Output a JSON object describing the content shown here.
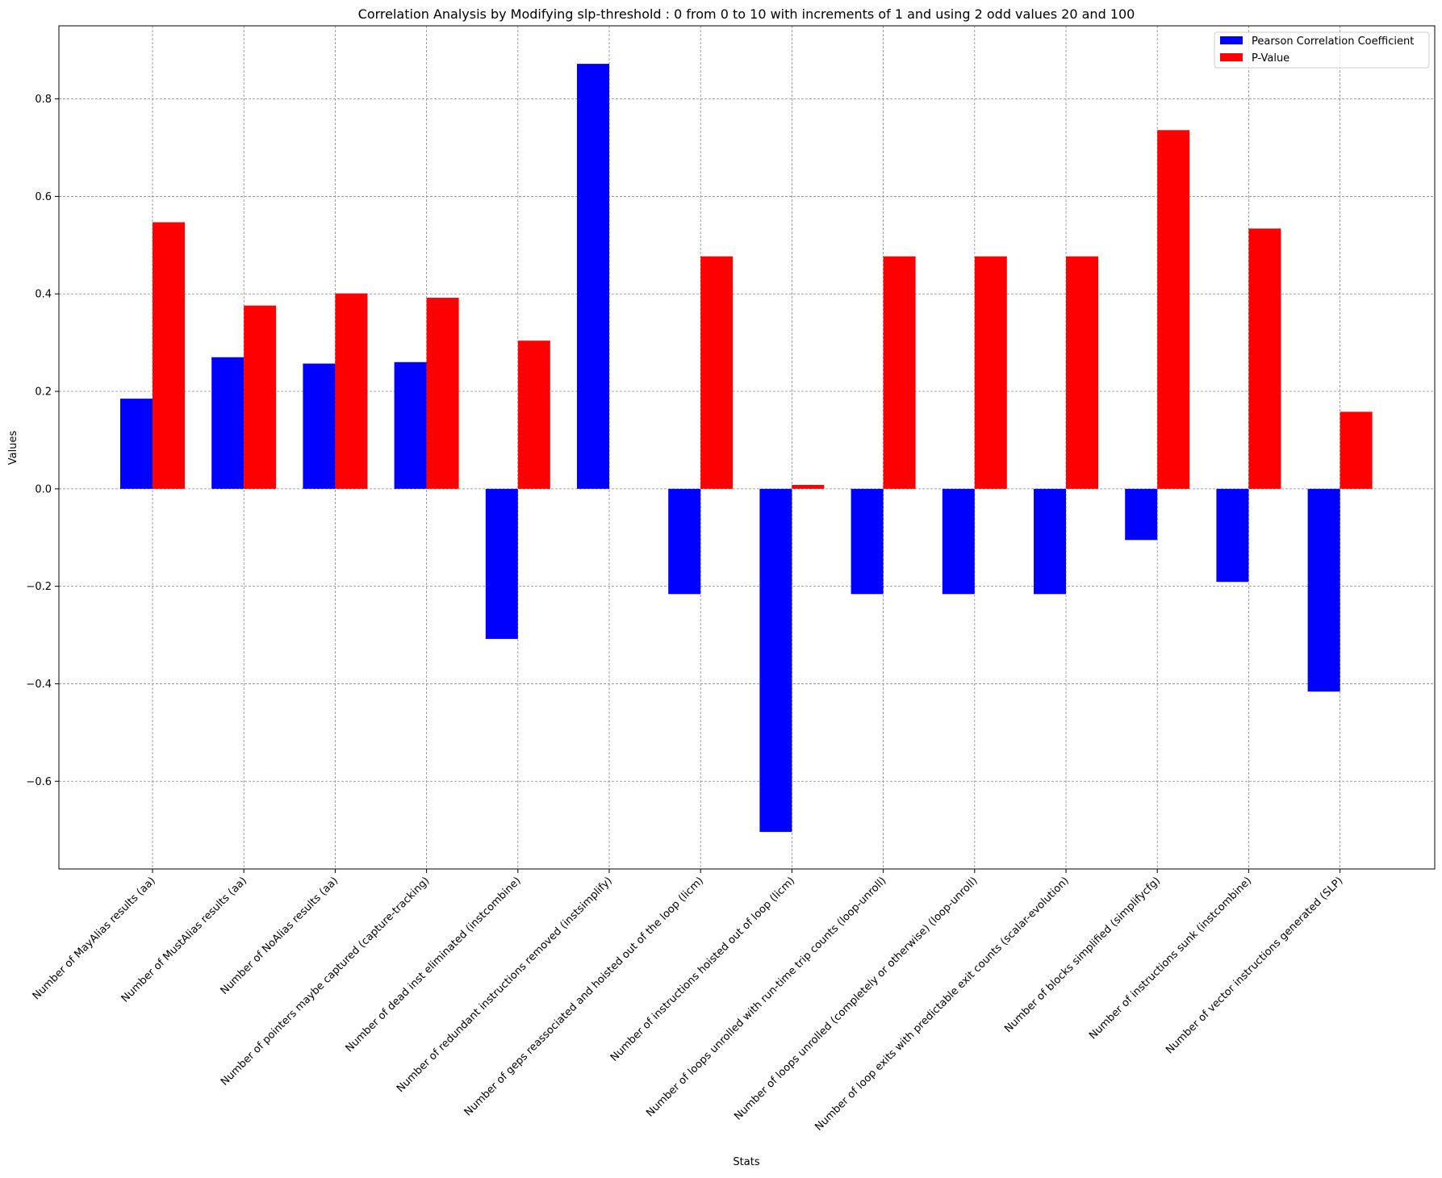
{
  "chart_data": {
    "type": "bar",
    "title": "Correlation Analysis by Modifying slp-threshold : 0 from 0 to 10 with increments of 1 and using 2 odd values 20 and 100",
    "xlabel": "Stats",
    "ylabel": "Values",
    "ylim": [
      -0.78,
      0.95
    ],
    "yticks": [
      -0.6,
      -0.4,
      -0.2,
      0.0,
      0.2,
      0.4,
      0.6,
      0.8
    ],
    "ytick_labels": [
      "−0.6",
      "−0.4",
      "−0.2",
      "0.0",
      "0.2",
      "0.4",
      "0.6",
      "0.8"
    ],
    "grid": true,
    "legend_position": "top-right",
    "categories": [
      "Number of MayAlias results (aa)",
      "Number of MustAlias results (aa)",
      "Number of NoAlias results (aa)",
      "Number of pointers maybe captured (capture-tracking)",
      "Number of dead inst eliminated (instcombine)",
      "Number of redundant instructions removed (instsimplify)",
      "Number of geps reassociated and hoisted out of the loop (licm)",
      "Number of instructions hoisted out of loop (licm)",
      "Number of loops unrolled with run-time trip counts (loop-unroll)",
      "Number of loops unrolled (completely or otherwise) (loop-unroll)",
      "Number of loop exits with predictable exit counts (scalar-evolution)",
      "Number of blocks simplified (simplifycfg)",
      "Number of instructions sunk (instcombine)",
      "Number of vector instructions generated (SLP)"
    ],
    "series": [
      {
        "name": "Pearson Correlation Coefficient",
        "color": "#0000ff",
        "values": [
          0.185,
          0.27,
          0.257,
          0.26,
          -0.308,
          0.872,
          -0.216,
          -0.704,
          -0.216,
          -0.216,
          -0.216,
          -0.105,
          -0.191,
          -0.416
        ]
      },
      {
        "name": "P-Value",
        "color": "#ff0000",
        "values": [
          0.547,
          0.376,
          0.401,
          0.392,
          0.304,
          0.0,
          0.477,
          0.008,
          0.477,
          0.477,
          0.477,
          0.736,
          0.534,
          0.158
        ]
      }
    ]
  }
}
